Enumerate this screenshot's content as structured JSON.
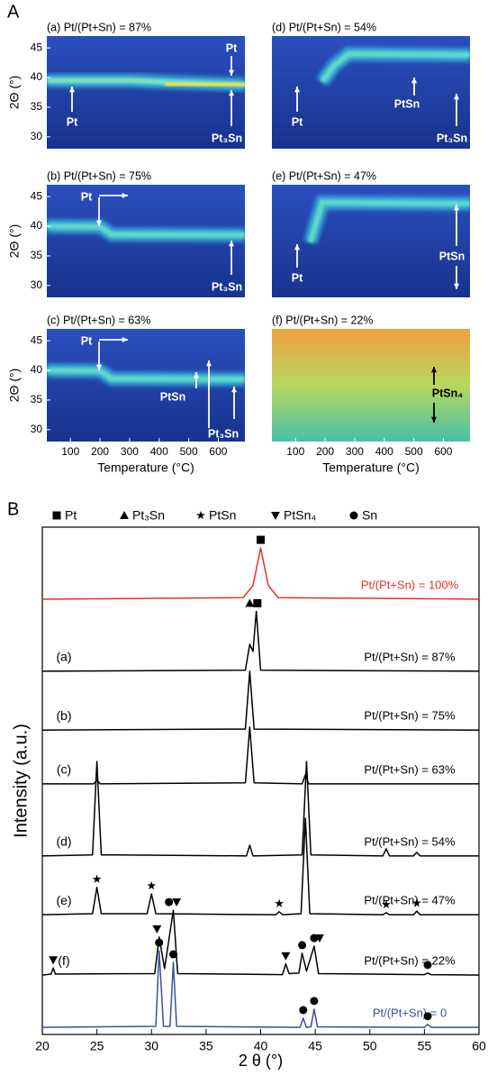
{
  "figure": {
    "panels": [
      "A",
      "B"
    ]
  },
  "chart_data": [
    {
      "type": "heatmap",
      "title": "(a) Pt/(Pt+Sn) = 87%",
      "y_label": "2Θ (°)",
      "xlim": [
        20,
        690
      ],
      "ylim": [
        28,
        47
      ],
      "yticks": [
        30,
        35,
        40,
        45
      ],
      "background": [
        "#17338f",
        "#2a4fbd"
      ],
      "glow": "#3ccbe6",
      "annotation_color": "#ffffff",
      "annotations": [
        "Pt",
        "Pt",
        "Pt₃Sn"
      ],
      "bands": [
        {
          "temperature": [
            20,
            300,
            450,
            690
          ],
          "two_theta": [
            39.5,
            39.5,
            39.2,
            38.8
          ],
          "color": "#7ee0c0"
        },
        {
          "temperature": [
            420,
            690
          ],
          "two_theta": [
            38.9,
            38.8
          ],
          "color": "#e8e040"
        },
        {
          "temperature": [
            500,
            690
          ],
          "two_theta": [
            38.8,
            38.8
          ],
          "color": "#e03020"
        }
      ]
    },
    {
      "type": "heatmap",
      "title": "(b) Pt/(Pt+Sn) = 75%",
      "y_label": "2Θ (°)",
      "xlim": [
        20,
        690
      ],
      "ylim": [
        28,
        47
      ],
      "yticks": [
        30,
        35,
        40,
        45
      ],
      "background": [
        "#17338f",
        "#2a4fbd"
      ],
      "glow": "#3ccbe6",
      "annotation_color": "#ffffff",
      "annotations": [
        "Pt",
        "Pt₃Sn"
      ],
      "bands": [
        {
          "temperature": [
            20,
            200,
            240,
            690
          ],
          "two_theta": [
            40,
            39.9,
            38.6,
            38.5
          ],
          "color": "#60d8c8"
        },
        {
          "temperature": [
            420,
            690
          ],
          "two_theta": [
            38.5,
            38.5
          ],
          "color": "#e8e040"
        },
        {
          "temperature": [
            520,
            690
          ],
          "two_theta": [
            38.5,
            38.5
          ],
          "color": "#e04020"
        }
      ]
    },
    {
      "type": "heatmap",
      "title": "(c) Pt/(Pt+Sn) = 63%",
      "y_label": "2Θ (°)",
      "x_label": "Temperature (°C)",
      "xlim": [
        20,
        690
      ],
      "ylim": [
        28,
        47
      ],
      "xticks": [
        100,
        200,
        300,
        400,
        500,
        600
      ],
      "yticks": [
        30,
        35,
        40,
        45
      ],
      "background": [
        "#17338f",
        "#2a4fbd"
      ],
      "glow": "#3ccbe6",
      "annotation_color": "#ffffff",
      "annotations": [
        "Pt",
        "PtSn",
        "Pt₃Sn"
      ],
      "bands": [
        {
          "temperature": [
            20,
            200,
            240,
            690
          ],
          "two_theta": [
            40,
            39.9,
            38.6,
            38.5
          ],
          "color": "#60d8c8"
        },
        {
          "temperature": [
            420,
            690
          ],
          "two_theta": [
            38.5,
            38.5
          ],
          "color": "#e8e040"
        },
        {
          "temperature": [
            500,
            690
          ],
          "two_theta": [
            38.5,
            38.5
          ],
          "color": "#e04020"
        },
        {
          "temperature": [
            400,
            690
          ],
          "two_theta": [
            43.7,
            43.7
          ],
          "color": "#50c0e0"
        }
      ]
    },
    {
      "type": "heatmap",
      "title": "(d) Pt/(Pt+Sn) = 54%",
      "xlim": [
        20,
        690
      ],
      "ylim": [
        28,
        47
      ],
      "background": [
        "#17338f",
        "#2a4fbd"
      ],
      "glow": "#3ccbe6",
      "annotation_color": "#ffffff",
      "annotations": [
        "Pt",
        "PtSn",
        "Pt₃Sn"
      ],
      "bands": [
        {
          "temperature": [
            20,
            190
          ],
          "two_theta": [
            39.5,
            39.5
          ],
          "color": "#e8e040"
        },
        {
          "temperature": [
            190,
            230,
            280,
            690
          ],
          "two_theta": [
            39.3,
            42,
            44,
            43.8
          ],
          "color": "#60d8c8"
        },
        {
          "temperature": [
            380,
            690
          ],
          "two_theta": [
            43.8,
            43.8
          ],
          "color": "#e03020"
        },
        {
          "temperature": [
            230,
            690
          ],
          "two_theta": [
            38.5,
            38.5
          ],
          "color": "#50c8e0"
        }
      ]
    },
    {
      "type": "heatmap",
      "title": "(e) Pt/(Pt+Sn) = 47%",
      "xlim": [
        20,
        690
      ],
      "ylim": [
        28,
        47
      ],
      "background": [
        "#17338f",
        "#2a4fbd"
      ],
      "glow": "#3ccbe6",
      "annotation_color": "#ffffff",
      "annotations": [
        "Pt",
        "PtSn"
      ],
      "bands": [
        {
          "temperature": [
            20,
            150
          ],
          "two_theta": [
            37.3,
            37.3
          ],
          "color": "#50c8e0"
        },
        {
          "temperature": [
            150,
            190,
            690
          ],
          "two_theta": [
            37.3,
            44,
            43.8
          ],
          "color": "#60d8c8"
        },
        {
          "temperature": [
            330,
            520
          ],
          "two_theta": [
            43.9,
            43.9
          ],
          "color": "#e03020"
        },
        {
          "temperature": [
            450,
            690
          ],
          "two_theta": [
            29.8,
            29.8
          ],
          "color": "#40b8e8"
        }
      ]
    },
    {
      "type": "heatmap",
      "title": "(f) Pt/(Pt+Sn) = 22%",
      "x_label": "Temperature (°C)",
      "xlim": [
        20,
        690
      ],
      "ylim": [
        28,
        47
      ],
      "xticks": [
        100,
        200,
        300,
        400,
        500,
        600
      ],
      "background": [
        "#48bfa8",
        "#b8d860",
        "#f0a040"
      ],
      "glow": "#f0e060",
      "annotation_color": "#000000",
      "annotations": [
        "PtSn₄"
      ],
      "bands": [
        {
          "temperature": [
            475,
            525
          ],
          "two_theta": [
            39,
            39
          ],
          "color": "#f08030"
        },
        {
          "temperature": [
            475,
            525
          ],
          "two_theta": [
            29.8,
            29.8
          ],
          "color": "#f08030"
        }
      ]
    },
    {
      "type": "line",
      "x_label": "2 θ (°)",
      "y_label": "Intensity (a.u.)",
      "xlim": [
        20,
        60
      ],
      "xticks": [
        20,
        25,
        30,
        35,
        40,
        45,
        50,
        55,
        60
      ],
      "ylim": [
        0,
        100
      ],
      "phases": [
        {
          "symbol": "square",
          "name": "Pt"
        },
        {
          "symbol": "triangle",
          "name": "Pt₃Sn"
        },
        {
          "symbol": "star",
          "name": "PtSn"
        },
        {
          "symbol": "triangle-down",
          "name": "PtSn₄"
        },
        {
          "symbol": "circle",
          "name": "Sn"
        }
      ],
      "series": [
        {
          "name": "Pt/(Pt+Sn) = 100%",
          "color": "#e8302a",
          "x": [
            20,
            38.4,
            39.3,
            40,
            40.7,
            41.6,
            60
          ],
          "values": [
            85.8,
            86.1,
            88.5,
            95.9,
            88.5,
            86.1,
            85.8
          ],
          "markers": [
            {
              "x": 40,
              "symbol": "square"
            }
          ]
        },
        {
          "name": "Pt/(Pt+Sn) = 87%",
          "label": "(a)",
          "color": "#000000",
          "x": [
            20,
            38.6,
            39,
            39.3,
            39.6,
            40,
            60
          ],
          "values": [
            71.6,
            71.8,
            76.9,
            75.5,
            83.4,
            71.8,
            71.6
          ],
          "markers": [
            {
              "x": 39,
              "symbol": "triangle"
            },
            {
              "x": 39.7,
              "symbol": "square"
            }
          ]
        },
        {
          "name": "Pt/(Pt+Sn) = 75%",
          "label": "(b)",
          "color": "#000000",
          "x": [
            20,
            38.6,
            39,
            39.4,
            60
          ],
          "values": [
            60,
            60.2,
            71.6,
            60.2,
            60
          ]
        },
        {
          "name": "Pt/(Pt+Sn) = 63%",
          "label": "(c)",
          "color": "#000000",
          "x": [
            20,
            24.7,
            25,
            25.3,
            38.6,
            39,
            39.4,
            43.8,
            44.1,
            44.4,
            60
          ],
          "values": [
            49.4,
            49.4,
            50.1,
            49.4,
            49.6,
            60.6,
            49.6,
            49.4,
            51.2,
            49.4,
            49.4
          ]
        },
        {
          "name": "Pt/(Pt+Sn) = 54%",
          "label": "(d)",
          "color": "#000000",
          "x": [
            20,
            24.6,
            25,
            25.4,
            38.7,
            39,
            39.3,
            43.8,
            44.2,
            44.6,
            51.2,
            51.5,
            51.8,
            54,
            54.3,
            54.6,
            60
          ],
          "values": [
            35.2,
            35.4,
            53.8,
            35.4,
            35.2,
            37.3,
            35.2,
            35.4,
            53.8,
            35.4,
            35.2,
            36.6,
            35.2,
            35.2,
            35.9,
            35.2,
            35.2
          ]
        },
        {
          "name": "Pt/(Pt+Sn) = 47%",
          "label": "(e)",
          "color": "#000000",
          "x": [
            20,
            24.6,
            25,
            25.4,
            29.6,
            30,
            30.4,
            41.4,
            41.7,
            42,
            43.7,
            44.1,
            44.5,
            51.2,
            51.5,
            51.8,
            54,
            54.3,
            54.6,
            60
          ],
          "values": [
            23.6,
            23.8,
            29,
            23.8,
            23.8,
            27.7,
            23.8,
            23.6,
            24.2,
            23.6,
            23.8,
            42.6,
            23.8,
            23.6,
            24,
            23.6,
            23.6,
            24.3,
            23.6,
            23.6
          ],
          "markers": [
            {
              "x": 25,
              "symbol": "star"
            },
            {
              "x": 30,
              "symbol": "star"
            },
            {
              "x": 41.7,
              "symbol": "star"
            },
            {
              "x": 51.5,
              "symbol": "star"
            },
            {
              "x": 54.3,
              "symbol": "star"
            }
          ]
        },
        {
          "name": "Pt/(Pt+Sn) = 22%",
          "label": "(f)",
          "color": "#000000",
          "x": [
            20,
            20.8,
            21,
            21.2,
            30.3,
            30.7,
            31.2,
            32,
            32.4,
            42,
            42.3,
            42.6,
            43.5,
            43.8,
            44.2,
            44.9,
            45.3,
            55,
            55.3,
            55.6,
            60
          ],
          "values": [
            11.7,
            11.9,
            13.1,
            11.9,
            12,
            19.2,
            13,
            24.5,
            12,
            11.8,
            13.9,
            12,
            12.1,
            16,
            12.5,
            17.4,
            12,
            11.8,
            12.1,
            11.8,
            11.7
          ],
          "markers": [
            {
              "x": 21,
              "symbol": "triangle-down"
            },
            {
              "x": 30.5,
              "symbol": "triangle-down"
            },
            {
              "x": 31.6,
              "symbol": "circle"
            },
            {
              "x": 32.3,
              "symbol": "triangle-down"
            },
            {
              "x": 42.3,
              "symbol": "triangle-down"
            },
            {
              "x": 43.8,
              "symbol": "circle"
            },
            {
              "x": 44.9,
              "symbol": "circle"
            },
            {
              "x": 45.4,
              "symbol": "triangle-down"
            },
            {
              "x": 55.3,
              "symbol": "circle"
            }
          ]
        },
        {
          "name": "Pt/(Pt+Sn) = 0",
          "color": "#3a4fa0",
          "x": [
            20,
            30.4,
            30.7,
            31.1,
            31.7,
            32,
            32.3,
            43.6,
            43.9,
            44.2,
            44.6,
            44.9,
            45.2,
            55,
            55.3,
            55.6,
            60
          ],
          "values": [
            1.4,
            1.6,
            16.5,
            1.6,
            1.6,
            14.2,
            1.6,
            1.4,
            3.2,
            1.4,
            1.5,
            5,
            1.5,
            1.4,
            2,
            1.4,
            1.4
          ],
          "markers": [
            {
              "x": 30.7,
              "symbol": "circle"
            },
            {
              "x": 32,
              "symbol": "circle"
            },
            {
              "x": 43.9,
              "symbol": "circle"
            },
            {
              "x": 44.9,
              "symbol": "circle"
            },
            {
              "x": 55.3,
              "symbol": "circle"
            }
          ]
        }
      ]
    }
  ]
}
